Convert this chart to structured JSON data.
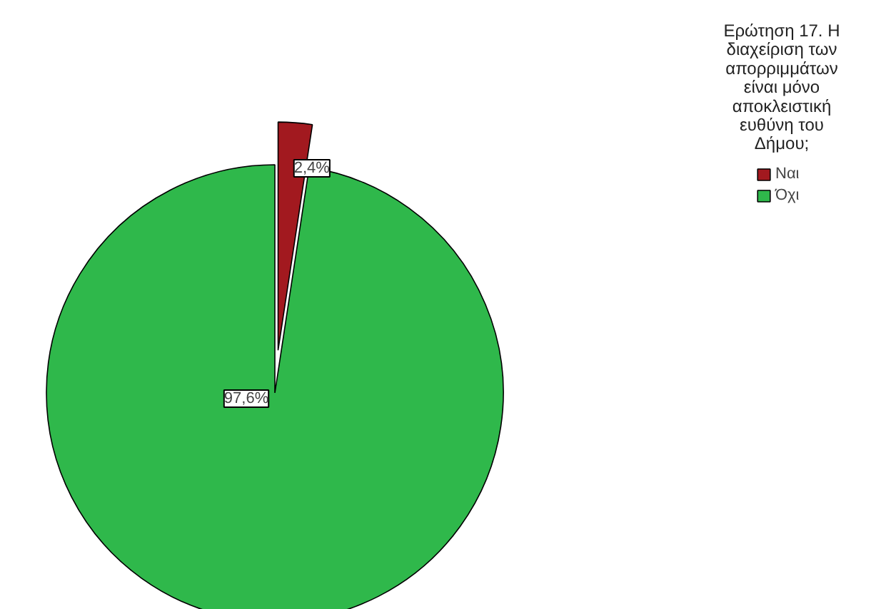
{
  "chart_data": {
    "type": "pie",
    "legend_title": "Ερώτηση 17. Η διαχείριση των απορριμμάτων είναι μόνο αποκλειστική ευθύνη του Δήμου;",
    "categories": [
      "Ναι",
      "Όχι"
    ],
    "values": [
      2.4,
      97.6
    ],
    "value_labels": [
      "2,4%",
      "97,6%"
    ],
    "colors": [
      "#a2191f",
      "#2fb84b"
    ],
    "legend": "top right"
  }
}
